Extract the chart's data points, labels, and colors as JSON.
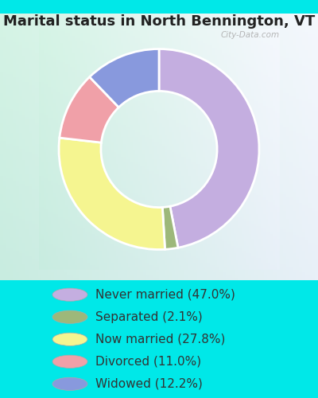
{
  "title": "Marital status in North Bennington, VT",
  "slices": [
    47.0,
    2.1,
    27.8,
    11.0,
    12.2
  ],
  "labels": [
    "Never married (47.0%)",
    "Separated (2.1%)",
    "Now married (27.8%)",
    "Divorced (11.0%)",
    "Widowed (12.2%)"
  ],
  "colors": [
    "#c4aee0",
    "#9db87a",
    "#f5f590",
    "#f0a0a8",
    "#8899dd"
  ],
  "legend_colors": [
    "#c4aee0",
    "#9db87a",
    "#f5f590",
    "#f0a0a8",
    "#8899dd"
  ],
  "chart_bg_left": "#c8ece0",
  "chart_bg_right": "#e8f0f8",
  "outer_bg": "#00e8e8",
  "title_fontsize": 13,
  "legend_fontsize": 11,
  "watermark": "City-Data.com",
  "start_angle": 90,
  "title_color": "#222222"
}
